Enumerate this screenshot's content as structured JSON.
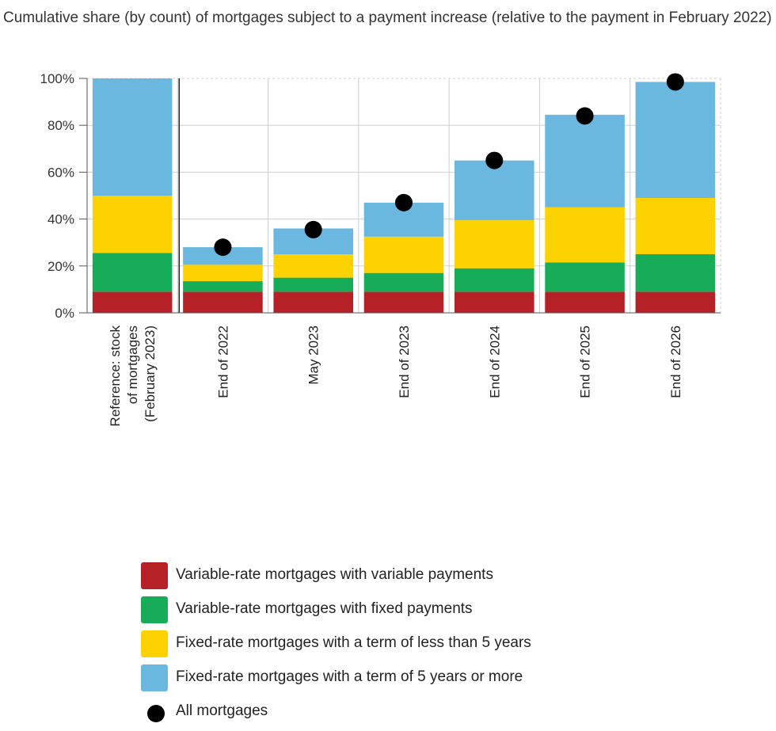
{
  "chart_data": {
    "type": "bar",
    "stacked": true,
    "title": "Cumulative share (by count) of mortgages subject to a payment increase (relative to the payment in February 2022)",
    "xlabel": "",
    "ylabel": "",
    "ylim": [
      0,
      100
    ],
    "yticks": [
      "0%",
      "20%",
      "40%",
      "60%",
      "80%",
      "100%"
    ],
    "grid": true,
    "legend_position": "bottom",
    "categories": [
      "Reference: stock of mortgages (February 2023)",
      "End of 2022",
      "May 2023",
      "End of 2023",
      "End of 2024",
      "End of 2025",
      "End of 2026"
    ],
    "series": [
      {
        "name": "Variable-rate mortgages with variable payments",
        "color": "#b52126",
        "values": [
          9,
          9,
          9,
          9,
          9,
          9,
          9
        ]
      },
      {
        "name": "Variable-rate mortgages with fixed payments",
        "color": "#17ad58",
        "values": [
          16.5,
          4.5,
          6,
          8,
          10,
          12.5,
          16
        ]
      },
      {
        "name": "Fixed-rate mortgages with a term of less than 5 years",
        "color": "#fcd200",
        "values": [
          24.5,
          7,
          10,
          15.5,
          20.5,
          23.5,
          24
        ]
      },
      {
        "name": "Fixed-rate mortgages with a term of 5 years or more",
        "color": "#6ab7e0",
        "values": [
          50,
          7.5,
          11,
          14.5,
          25.5,
          39.5,
          49.5
        ]
      }
    ],
    "markers": {
      "name": "All mortgages",
      "color": "#000000",
      "values": [
        null,
        28,
        35.5,
        47,
        65,
        84,
        98.5
      ]
    }
  }
}
